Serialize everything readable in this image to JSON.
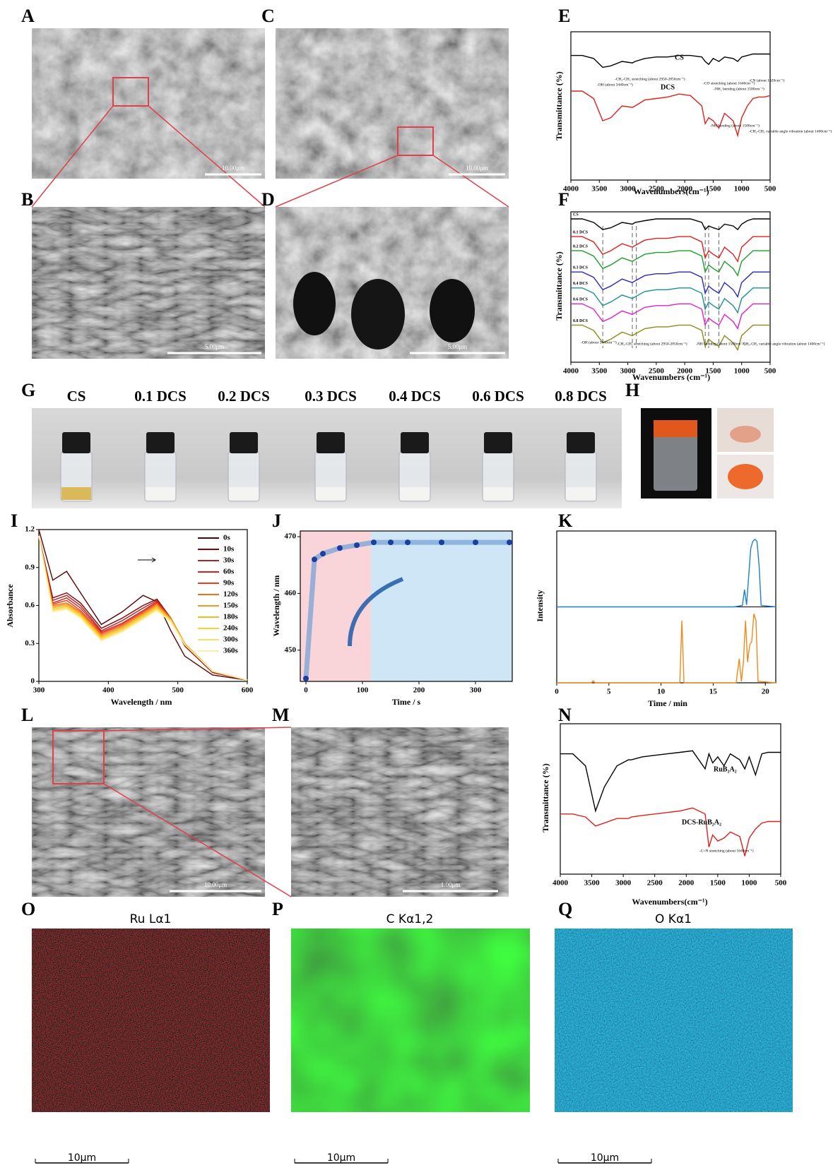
{
  "panel_letters": [
    "A",
    "B",
    "C",
    "D",
    "E",
    "F",
    "G",
    "H",
    "I",
    "J",
    "K",
    "L",
    "M",
    "N",
    "O",
    "P",
    "Q"
  ],
  "scale_bars": [
    "10.00μm",
    "5.00μm",
    "10.00μm",
    "5.00μm",
    "10.00μm",
    "1.00μm"
  ],
  "vials": [
    "CS",
    "0.1 DCS",
    "0.2 DCS",
    "0.3 DCS",
    "0.4 DCS",
    "0.6 DCS",
    "0.8 DCS"
  ],
  "eds": [
    {
      "title": "Ru Lα1",
      "scale": "10μm"
    },
    {
      "title": "C Kα1,2",
      "scale": "10μm"
    },
    {
      "title": "O Kα1",
      "scale": "10μm"
    }
  ],
  "chart_data": [
    {
      "type": "line",
      "xlabel": "Wavenumbers(cm⁻¹)",
      "ylabel": "Transmittance (%)",
      "x": [
        4000,
        3800,
        3600,
        3440,
        3300,
        3100,
        2920,
        2870,
        2700,
        2500,
        2300,
        2100,
        1900,
        1700,
        1640,
        1580,
        1500,
        1400,
        1300,
        1150,
        1070,
        1000,
        900,
        800,
        700,
        600,
        500
      ],
      "xlim": [
        4000,
        500
      ],
      "xticks": [
        4000,
        3500,
        3000,
        2500,
        2000,
        1500,
        1000,
        500
      ],
      "ylim": [
        0,
        100
      ],
      "series": [
        {
          "name": "CS",
          "color": "#000000",
          "values": [
            84,
            84,
            82,
            76,
            77,
            80,
            79,
            80,
            82,
            83,
            83,
            84,
            84,
            83,
            80,
            78,
            82,
            80,
            83,
            82,
            80,
            83,
            84,
            85,
            85,
            85,
            85
          ]
        },
        {
          "name": "DCS",
          "color": "#e0201b",
          "values": [
            60,
            60,
            55,
            40,
            42,
            50,
            49,
            50,
            54,
            55,
            56,
            58,
            57,
            50,
            38,
            42,
            40,
            35,
            45,
            40,
            30,
            42,
            50,
            55,
            56,
            56,
            57
          ]
        }
      ],
      "annotations": [
        "-OH (about 3440cm⁻¹)",
        "-CH₂-CH₂ stretching (about 2950-2850cm⁻¹)",
        "-CO stretching (about 1640cm⁻¹)",
        "-NH₂ bending (about 1580cm⁻¹)",
        "-CN (about 1320cm⁻¹)",
        "-NH bending (about 1580cm⁻¹)",
        "-CH₂-CH₂ variable angle vibration (about 1400cm⁻¹)"
      ]
    },
    {
      "type": "line",
      "xlabel": "Wavenumbers (cm⁻¹)",
      "ylabel": "Transmittance (%)",
      "x": [
        4000,
        3800,
        3600,
        3440,
        3300,
        3100,
        2920,
        2870,
        2700,
        2500,
        2300,
        2100,
        1900,
        1700,
        1640,
        1580,
        1500,
        1400,
        1300,
        1150,
        1070,
        1000,
        900,
        800,
        700,
        600,
        500
      ],
      "xlim": [
        4000,
        500
      ],
      "xticks": [
        4000,
        3500,
        3000,
        2500,
        2000,
        1500,
        1000,
        500
      ],
      "ylim": [
        15,
        100
      ],
      "reference_lines": [
        3440,
        2920,
        2850,
        1640,
        1580,
        1400
      ],
      "series": [
        {
          "name": "CS",
          "color": "#000000",
          "values": [
            96,
            96,
            94,
            90,
            91,
            94,
            93,
            94,
            95,
            96,
            96,
            96,
            96,
            94,
            90,
            92,
            91,
            90,
            93,
            92,
            90,
            93,
            95,
            96,
            96,
            96,
            96
          ]
        },
        {
          "name": "0.1 DCS",
          "color": "#e0201b",
          "values": [
            86,
            86,
            83,
            76,
            78,
            82,
            80,
            81,
            84,
            85,
            85,
            86,
            86,
            83,
            74,
            78,
            76,
            74,
            80,
            76,
            72,
            80,
            83,
            86,
            86,
            86,
            86
          ]
        },
        {
          "name": "0.2 DCS",
          "color": "#1e9e2a",
          "values": [
            78,
            78,
            75,
            68,
            70,
            74,
            72,
            73,
            76,
            77,
            77,
            78,
            78,
            75,
            66,
            70,
            68,
            66,
            72,
            68,
            64,
            72,
            75,
            78,
            78,
            78,
            78
          ]
        },
        {
          "name": "0.3 DCS",
          "color": "#2a2abf",
          "values": [
            66,
            66,
            63,
            56,
            58,
            62,
            60,
            61,
            64,
            65,
            65,
            66,
            66,
            63,
            54,
            58,
            56,
            54,
            60,
            56,
            52,
            60,
            63,
            66,
            66,
            66,
            66
          ]
        },
        {
          "name": "0.4 DCS",
          "color": "#1b8f8f",
          "values": [
            57,
            57,
            54,
            47,
            49,
            53,
            51,
            52,
            55,
            56,
            56,
            57,
            57,
            54,
            45,
            49,
            47,
            45,
            51,
            47,
            43,
            51,
            54,
            57,
            57,
            57,
            57
          ]
        },
        {
          "name": "0.6 DCS",
          "color": "#e020d0",
          "values": [
            48,
            48,
            45,
            38,
            40,
            44,
            42,
            43,
            46,
            47,
            47,
            48,
            48,
            45,
            36,
            40,
            38,
            36,
            42,
            38,
            34,
            42,
            45,
            48,
            48,
            48,
            48
          ]
        },
        {
          "name": "0.8 DCS",
          "color": "#8b8b1a",
          "values": [
            36,
            36,
            33,
            26,
            28,
            32,
            30,
            31,
            34,
            35,
            35,
            36,
            36,
            33,
            24,
            28,
            26,
            24,
            30,
            26,
            22,
            30,
            33,
            36,
            36,
            36,
            36
          ]
        }
      ],
      "annotations": [
        "-OH (about 3440cm⁻¹)",
        "-CH₂-CH₂ stretching (about 2950-2850cm⁻¹)",
        "-NH bending (about 1580cm⁻¹)",
        "-CH₂-CH₂ variable angle vibration (about 1400cm⁻¹)"
      ]
    },
    {
      "type": "line",
      "xlabel": "Wavelength / nm",
      "ylabel": "Absorbance",
      "x": [
        300,
        320,
        340,
        360,
        390,
        420,
        450,
        470,
        490,
        510,
        550,
        600
      ],
      "xlim": [
        300,
        600
      ],
      "xticks": [
        300,
        400,
        500,
        600
      ],
      "ylim": [
        0,
        1.2
      ],
      "yticks": [
        0,
        0.3,
        0.6,
        0.9,
        1.2
      ],
      "series": [
        {
          "name": "0s",
          "color": "#5a0000",
          "values": [
            1.2,
            0.8,
            0.87,
            0.7,
            0.45,
            0.55,
            0.68,
            0.63,
            0.4,
            0.2,
            0.05,
            0.01
          ]
        },
        {
          "name": "10s",
          "color": "#8b0000",
          "values": [
            1.15,
            0.66,
            0.7,
            0.62,
            0.42,
            0.5,
            0.6,
            0.65,
            0.5,
            0.28,
            0.07,
            0.01
          ]
        },
        {
          "name": "30s",
          "color": "#b22222",
          "values": [
            1.15,
            0.64,
            0.68,
            0.6,
            0.4,
            0.48,
            0.58,
            0.64,
            0.5,
            0.29,
            0.07,
            0.01
          ]
        },
        {
          "name": "60s",
          "color": "#d62020",
          "values": [
            1.15,
            0.62,
            0.66,
            0.58,
            0.39,
            0.46,
            0.56,
            0.63,
            0.5,
            0.3,
            0.08,
            0.01
          ]
        },
        {
          "name": "90s",
          "color": "#e8401c",
          "values": [
            1.15,
            0.61,
            0.64,
            0.56,
            0.38,
            0.45,
            0.55,
            0.62,
            0.5,
            0.3,
            0.08,
            0.01
          ]
        },
        {
          "name": "120s",
          "color": "#f07020",
          "values": [
            1.15,
            0.6,
            0.62,
            0.55,
            0.37,
            0.44,
            0.54,
            0.61,
            0.5,
            0.3,
            0.08,
            0.01
          ]
        },
        {
          "name": "150s",
          "color": "#f59a20",
          "values": [
            1.15,
            0.59,
            0.61,
            0.54,
            0.36,
            0.43,
            0.53,
            0.6,
            0.49,
            0.3,
            0.08,
            0.01
          ]
        },
        {
          "name": "180s",
          "color": "#f8b820",
          "values": [
            1.15,
            0.58,
            0.6,
            0.53,
            0.35,
            0.42,
            0.52,
            0.59,
            0.49,
            0.3,
            0.08,
            0.01
          ]
        },
        {
          "name": "240s",
          "color": "#fbd030",
          "values": [
            1.15,
            0.57,
            0.59,
            0.52,
            0.34,
            0.41,
            0.51,
            0.58,
            0.48,
            0.29,
            0.08,
            0.01
          ]
        },
        {
          "name": "300s",
          "color": "#fce060",
          "values": [
            1.15,
            0.56,
            0.58,
            0.51,
            0.33,
            0.4,
            0.5,
            0.57,
            0.48,
            0.29,
            0.08,
            0.01
          ]
        },
        {
          "name": "360s",
          "color": "#fdf0a0",
          "values": [
            1.15,
            0.55,
            0.57,
            0.5,
            0.32,
            0.39,
            0.49,
            0.56,
            0.47,
            0.29,
            0.08,
            0.01
          ]
        }
      ]
    },
    {
      "type": "scatter",
      "xlabel": "Time / s",
      "ylabel": "Wavelength / nm",
      "x": [
        0,
        15,
        30,
        60,
        90,
        120,
        150,
        180,
        240,
        300,
        360
      ],
      "values": [
        445,
        466,
        467,
        468,
        468.5,
        469,
        469,
        469,
        469,
        469,
        469
      ],
      "color": "#1a3fa0",
      "xlim": [
        -10,
        365
      ],
      "xticks": [
        0,
        100,
        200,
        300
      ],
      "ylim": [
        444.5,
        471
      ],
      "yticks": [
        450,
        460,
        470
      ],
      "shaded_regions": [
        {
          "x": [
            -10,
            115
          ],
          "color": "#f9d4d8"
        },
        {
          "x": [
            115,
            365
          ],
          "color": "#cfe6f7"
        }
      ]
    },
    {
      "type": "line",
      "xlabel": "Time / min",
      "ylabel": "Intensity",
      "xlim": [
        0,
        21
      ],
      "xticks": [
        0,
        5,
        10,
        15,
        20
      ],
      "ylim": [
        0,
        1.1
      ],
      "series": [
        {
          "color": "#1f7fd0",
          "x": [
            0,
            17,
            17.8,
            18.0,
            18.2,
            18.6,
            18.8,
            19.0,
            19.2,
            19.4,
            19.6,
            21
          ],
          "values": [
            0,
            0,
            0.02,
            0.25,
            0.03,
            0.85,
            0.95,
            0.98,
            0.95,
            0.6,
            0.02,
            0
          ]
        },
        {
          "color": "#f08a1c",
          "x": [
            0,
            3.3,
            3.5,
            3.7,
            11.8,
            12.0,
            12.2,
            17.2,
            17.5,
            17.7,
            17.9,
            18.1,
            18.3,
            18.5,
            18.7,
            18.9,
            19.1,
            19.3,
            21
          ],
          "values": [
            0,
            0,
            0.03,
            0,
            0,
            0.9,
            0,
            0,
            0.35,
            0.02,
            0.3,
            0.9,
            0.3,
            0.55,
            0.6,
            1.0,
            0.9,
            0.02,
            0
          ]
        }
      ]
    },
    {
      "type": "line",
      "xlabel": "Wavenumbers(cm⁻¹)",
      "ylabel": "Transmittance (%)",
      "x": [
        4000,
        3800,
        3600,
        3440,
        3300,
        3100,
        2920,
        2870,
        2700,
        2500,
        2300,
        2100,
        1900,
        1700,
        1640,
        1580,
        1500,
        1400,
        1300,
        1150,
        1070,
        1000,
        900,
        800,
        700,
        600,
        500
      ],
      "xlim": [
        4000,
        500
      ],
      "xticks": [
        4000,
        3500,
        3000,
        2500,
        2000,
        1500,
        1000,
        500
      ],
      "ylim": [
        0,
        100
      ],
      "series": [
        {
          "name": "RuB₂A₂",
          "color": "#000000",
          "values": [
            80,
            80,
            72,
            42,
            58,
            72,
            76,
            76,
            78,
            79,
            80,
            81,
            82,
            70,
            80,
            74,
            78,
            72,
            80,
            76,
            70,
            78,
            66,
            80,
            81,
            81,
            81
          ]
        },
        {
          "name": "DCS-RuB₂A₂",
          "color": "#e0201b",
          "values": [
            40,
            40,
            38,
            32,
            34,
            37,
            37,
            38,
            39,
            40,
            41,
            42,
            44,
            40,
            18,
            26,
            22,
            24,
            28,
            25,
            12,
            24,
            30,
            34,
            35,
            35,
            35
          ]
        }
      ],
      "annotations": [
        "-C=N stretching (about 1640cm⁻¹)"
      ]
    }
  ]
}
